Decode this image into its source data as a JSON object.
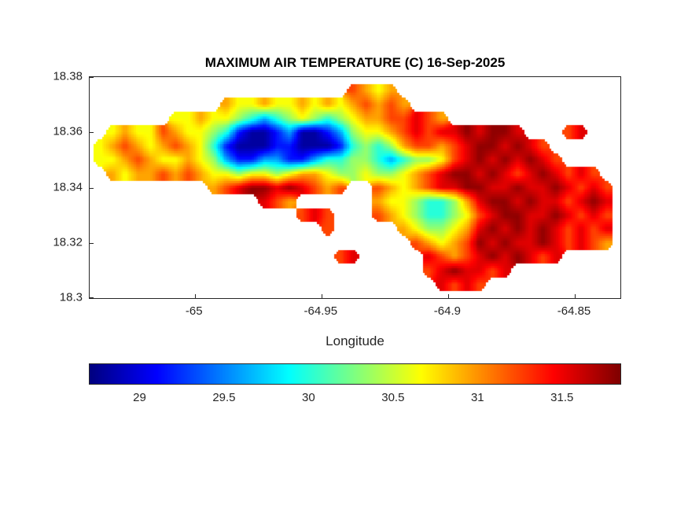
{
  "colors": {
    "background": "#ffffff",
    "axis": "#262626",
    "title": "#000000"
  },
  "chart_data": {
    "type": "heatmap",
    "title": "MAXIMUM AIR TEMPERATURE (C) 16-Sep-2025",
    "xlabel": "Longitude",
    "ylabel": "",
    "xlim": [
      -65.0415,
      -64.832
    ],
    "ylim": [
      18.3,
      18.38
    ],
    "x_ticks": [
      -65,
      -64.95,
      -64.9,
      -64.85
    ],
    "x_tick_labels": [
      "-65",
      "-64.95",
      "-64.9",
      "-64.85"
    ],
    "y_ticks": [
      18.38,
      18.36,
      18.34,
      18.32,
      18.3
    ],
    "y_tick_labels": [
      "18.38",
      "18.36",
      "18.34",
      "18.32",
      "18.3"
    ],
    "grid_lines": false,
    "colormap": "jet",
    "colorbar": {
      "orientation": "horizontal",
      "position": "south",
      "vmin": 28.7,
      "vmax": 31.85,
      "ticks": [
        29,
        29.5,
        30,
        30.5,
        31,
        31.5
      ],
      "tick_labels": [
        "29",
        "29.5",
        "30",
        "30.5",
        "31",
        "31.5"
      ]
    },
    "grid": {
      "comment_semantics": "Estimated max air temperature (deg C) on a lon/lat grid; '.' = ocean (no data). Row 0 is northernmost.",
      "lon_origin": -65.0375,
      "lat_origin": 18.375,
      "dlon": 0.005,
      "dlat": -0.005,
      "ncols": 44,
      "nrows": 16,
      "ocean_char": ".",
      "level_temps": {
        "a": 28.8,
        "b": 29.15,
        "c": 29.6,
        "d": 30.0,
        "e": 30.35,
        "f": 30.65,
        "g": 30.95,
        "h": 31.25,
        "i": 31.55,
        "j": 31.8
      },
      "rows": [
        "....................hgfg....................",
        "..........gffgffgfgfghghg...................",
        "......ffgffedcdefedefgghhihg................",
        ".fgffhgffedbaabcaabceffghihiijijji...hi.....",
        "fghgfghgfdbaaabbaaabdedeghhghijjijih........",
        "ffghgffgfecbbccbbcddeedcdeefhijijijih.......",
        ".gfgghghgffeffefggfeefeefghijjijihijihih....",
        ".........ghijjijihgh..hgfghiijjiijiijihih...",
        ".............ihg......gffeddegijjijiihiji...",
        "................hih...hgfeddefhijjiijihih...",
        "..................h.....gfeefgijijijihihi...",
        ".........................hgfghjijiijihihg...",
        "...................hi.....ihghijijihi.......",
        "..........................hijiihi...........",
        "...........................ihih.............",
        "............................................"
      ]
    }
  }
}
